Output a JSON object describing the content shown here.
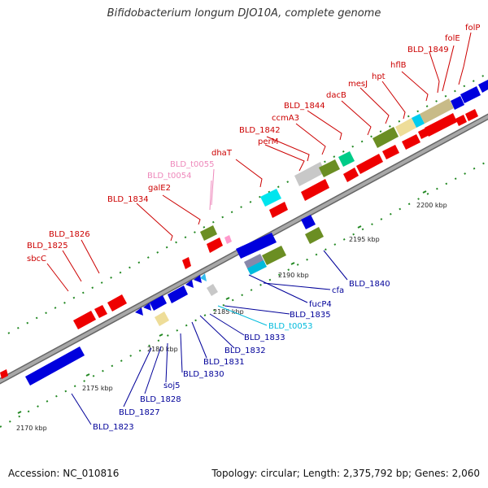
{
  "title": "Bifidobacterium longum DJO10A, complete genome",
  "footer": {
    "accession": "Accession: NC_010816",
    "summary": "Topology: circular; Length: 2,375,792 bp; Genes: 2,060"
  },
  "colors": {
    "backbone": "#a8a8a8",
    "backbone_edge": "#666666",
    "label_top": "#cc0000",
    "label_bottom": "#000099",
    "label_trna_top": "#ee88bb",
    "label_trna_bottom": "#00bbdd",
    "tick_dot": "#228822"
  },
  "scale_labels": [
    "2170 kbp",
    "2175 kbp",
    "2180 kbp",
    "2185 kbp",
    "2190 kbp",
    "2195 kbp",
    "2200 kbp"
  ],
  "top_labels": [
    "folP",
    "folE",
    "BLD_1849",
    "hflB",
    "hpt",
    "mesJ",
    "dacB",
    "BLD_1844",
    "ccmA3",
    "BLD_1842",
    "perM",
    "dhaT",
    "BLD_t0055",
    "BLD_t0054",
    "galE2",
    "BLD_1834",
    "BLD_1826",
    "BLD_1825",
    "sbcC"
  ],
  "bottom_labels": [
    "BLD_1840",
    "cfa",
    "fucP4",
    "BLD_1835",
    "BLD_t0053",
    "BLD_1833",
    "BLD_1832",
    "BLD_1831",
    "BLD_1830",
    "soj5",
    "BLD_1828",
    "BLD_1827",
    "BLD_1823"
  ]
}
